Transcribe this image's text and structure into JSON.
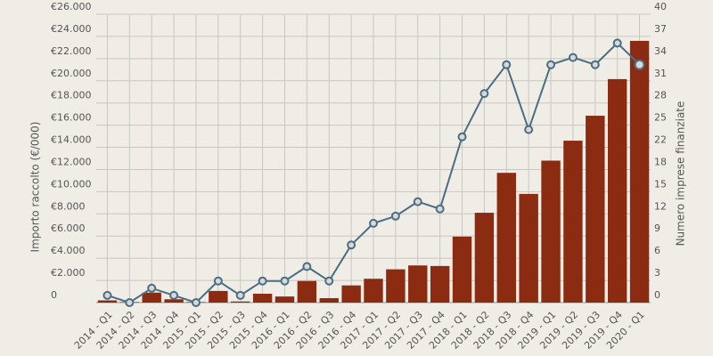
{
  "chart_data": {
    "type": "bar-line",
    "y_label": "Importo raccolto (€/000)",
    "y2_label": "Numero imprese finanziate",
    "categories": [
      "2014 - Q1",
      "2014 - Q2",
      "2014 - Q3",
      "2014 - Q4",
      "2015 - Q1",
      "2015 - Q2",
      "2015 - Q3",
      "2015 - Q4",
      "2016 - Q1",
      "2016 - Q2",
      "2016 - Q3",
      "2016 - Q4",
      "2017 - Q1",
      "2017 - Q2",
      "2017 - Q3",
      "2017 - Q4",
      "2018 - Q1",
      "2018 - Q2",
      "2018 - Q3",
      "2018 - Q4",
      "2019 - Q1",
      "2019 - Q2",
      "2019 - Q3",
      "2019 - Q4",
      "2020 - Q1"
    ],
    "series": [
      {
        "type": "bar",
        "color": "#8b2c12",
        "values": [
          200,
          50,
          900,
          300,
          50,
          1050,
          100,
          800,
          550,
          1950,
          400,
          1550,
          2150,
          3000,
          3350,
          3300,
          5950,
          8100,
          11700,
          9800,
          12800,
          14600,
          16850,
          20150,
          23600
        ]
      },
      {
        "type": "line",
        "axis": "y2",
        "color": "#4a6e82",
        "values": [
          1,
          0,
          2,
          1,
          0,
          3,
          1,
          3,
          3,
          5,
          3,
          8,
          11,
          12,
          14,
          13,
          23,
          29,
          33,
          24,
          33,
          34,
          33,
          36,
          33
        ]
      }
    ],
    "ylim": [
      0,
      26000
    ],
    "yticks": [
      0,
      {
        "value": 2000,
        "label": "€2.000"
      },
      {
        "value": 4000,
        "label": "€4.000"
      },
      {
        "value": 6000,
        "label": "€6.000"
      },
      {
        "value": 8000,
        "label": "€8.000"
      },
      {
        "value": 10000,
        "label": "€10.000"
      },
      {
        "value": 12000,
        "label": "€12.000"
      },
      {
        "value": 14000,
        "label": "€14.000"
      },
      {
        "value": 16000,
        "label": "€16.000"
      },
      {
        "value": 18000,
        "label": "€18.000"
      },
      {
        "value": 20000,
        "label": "€20.000"
      },
      {
        "value": 22000,
        "label": "€22.000"
      },
      {
        "value": 24000,
        "label": "€24.000"
      },
      {
        "value": 26000,
        "label": "€26.000"
      }
    ],
    "y2lim": [
      0,
      40
    ],
    "y2ticks": [
      0,
      {
        "value": 3.08,
        "label": "3"
      },
      {
        "value": 6.15,
        "label": "6"
      },
      {
        "value": 9.23,
        "label": "9"
      },
      {
        "value": 12.31,
        "label": "12"
      },
      {
        "value": 15.38,
        "label": "15"
      },
      {
        "value": 18.46,
        "label": "18"
      },
      {
        "value": 21.54,
        "label": "22"
      },
      {
        "value": 24.62,
        "label": "25"
      },
      {
        "value": 27.69,
        "label": "28"
      },
      {
        "value": 30.77,
        "label": "31"
      },
      {
        "value": 33.85,
        "label": "34"
      },
      {
        "value": 36.92,
        "label": "37"
      },
      40
    ],
    "grid": true
  }
}
